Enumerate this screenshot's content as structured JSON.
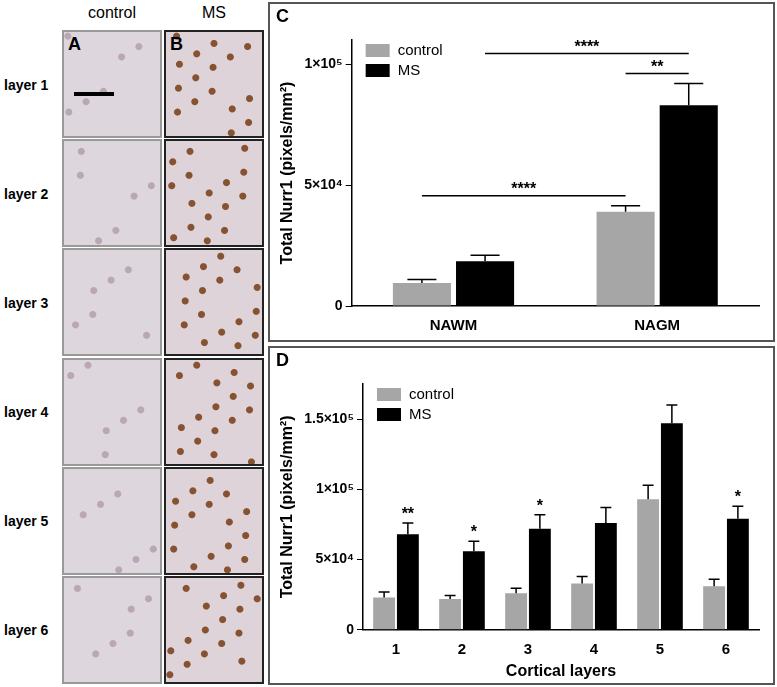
{
  "images": {
    "rows": [
      "layer 1",
      "layer 2",
      "layer 3",
      "layer 4",
      "layer 5",
      "layer 6"
    ],
    "columns": [
      {
        "panel": "A",
        "title": "control"
      },
      {
        "panel": "B",
        "title": "MS"
      }
    ]
  },
  "chart_data": [
    {
      "type": "bar",
      "title": "C",
      "categories": [
        "NAWM",
        "NAGM"
      ],
      "y_label": "Total Nurr1 (pixels/mm²)",
      "series": [
        {
          "name": "control",
          "color": "#a6a6a6",
          "values": [
            9500,
            39000
          ],
          "errors": [
            1500,
            2500
          ]
        },
        {
          "name": "MS",
          "color": "#000000",
          "values": [
            18500,
            83000
          ],
          "errors": [
            2500,
            9000
          ]
        }
      ],
      "ylim": [
        0,
        110000
      ],
      "yticks": [
        0,
        {
          "value": 50000,
          "label": "5×10⁴"
        },
        {
          "value": 100000,
          "label": "1×10⁵"
        }
      ],
      "grid": false,
      "legend": "upper left",
      "annotations": [
        {
          "text": "**",
          "from": [
            "NAGM",
            "control"
          ],
          "to": [
            "NAGM",
            "MS"
          ]
        },
        {
          "text": "****",
          "from": [
            "NAWM",
            "MS"
          ],
          "to": [
            "NAGM",
            "MS"
          ]
        },
        {
          "text": "****",
          "from": [
            "NAWM",
            "control"
          ],
          "to": [
            "NAGM",
            "control"
          ]
        }
      ]
    },
    {
      "type": "bar",
      "title": "D",
      "categories": [
        "1",
        "2",
        "3",
        "4",
        "5",
        "6"
      ],
      "x_label": "Cortical layers",
      "y_label": "Total Nurr1 (pixels/mm²)",
      "series": [
        {
          "name": "control",
          "color": "#a6a6a6",
          "values": [
            23000,
            22000,
            26000,
            33000,
            93000,
            31000
          ],
          "errors": [
            4000,
            2500,
            3500,
            5000,
            10000,
            5000
          ]
        },
        {
          "name": "MS",
          "color": "#000000",
          "values": [
            68000,
            56000,
            72000,
            76000,
            147000,
            79000
          ],
          "errors": [
            8000,
            7000,
            10000,
            11000,
            13000,
            9000
          ]
        }
      ],
      "ylim": [
        0,
        175000
      ],
      "yticks": [
        0,
        {
          "value": 50000,
          "label": "5×10⁴"
        },
        {
          "value": 100000,
          "label": "1×10⁵"
        },
        {
          "value": 150000,
          "label": "1.5×10⁵"
        }
      ],
      "grid": false,
      "legend": "upper left",
      "annotations": [
        {
          "text": "**",
          "at": [
            "1",
            "MS"
          ]
        },
        {
          "text": "*",
          "at": [
            "2",
            "MS"
          ]
        },
        {
          "text": "*",
          "at": [
            "3",
            "MS"
          ]
        },
        {
          "text": "*",
          "at": [
            "6",
            "MS"
          ]
        }
      ]
    }
  ]
}
